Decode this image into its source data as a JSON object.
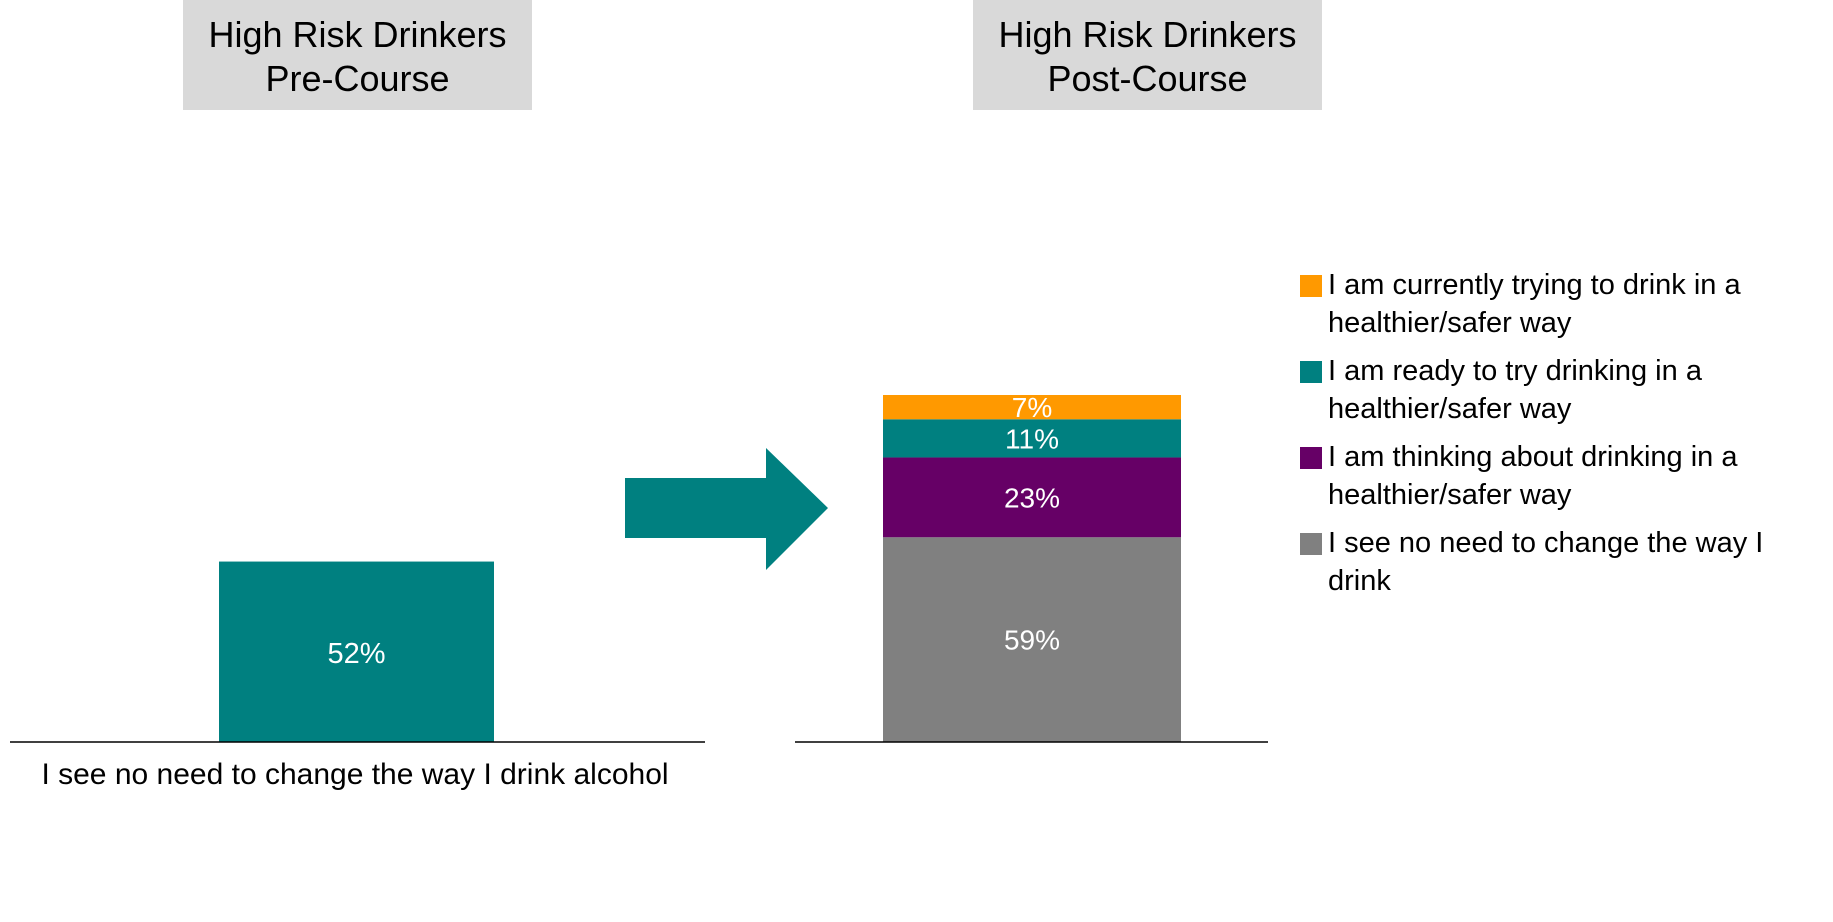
{
  "titles": {
    "pre": {
      "line1": "High Risk Drinkers",
      "line2": "Pre-Course"
    },
    "post": {
      "line1": "High Risk Drinkers",
      "line2": "Post-Course"
    }
  },
  "chart_data": [
    {
      "type": "bar",
      "title": "High Risk Drinkers Pre-Course",
      "categories": [
        "I see no need to change the way I drink alcohol"
      ],
      "series": [
        {
          "values": [
            52
          ],
          "color": "#008080"
        }
      ],
      "data_labels": [
        "52%"
      ],
      "ylim": [
        0,
        100
      ]
    },
    {
      "type": "bar",
      "stacked": true,
      "title": "High Risk Drinkers Post-Course",
      "categories": [
        ""
      ],
      "series": [
        {
          "name": "I see no need to change the way I drink",
          "values": [
            59
          ],
          "color": "#808080"
        },
        {
          "name": "I am thinking about drinking in a healthier/safer way",
          "values": [
            23
          ],
          "color": "#660066"
        },
        {
          "name": "I am ready to try drinking in a healthier/safer way",
          "values": [
            11
          ],
          "color": "#008080"
        },
        {
          "name": "I am currently trying to drink in a healthier/safer way",
          "values": [
            7
          ],
          "color": "#ff9900"
        }
      ],
      "data_labels": [
        "59%",
        "23%",
        "11%",
        "7%"
      ],
      "ylim": [
        0,
        100
      ],
      "legend": "right"
    }
  ],
  "legend_items": [
    {
      "label": "I am currently trying to drink in a healthier/safer way",
      "color": "#ff9900"
    },
    {
      "label": "I am ready to try drinking in a healthier/safer way",
      "color": "#008080"
    },
    {
      "label": "I am thinking about drinking in a healthier/safer way",
      "color": "#660066"
    },
    {
      "label": "I see no need to change the way I drink",
      "color": "#808080"
    }
  ],
  "arrow": {
    "color": "#008080"
  }
}
